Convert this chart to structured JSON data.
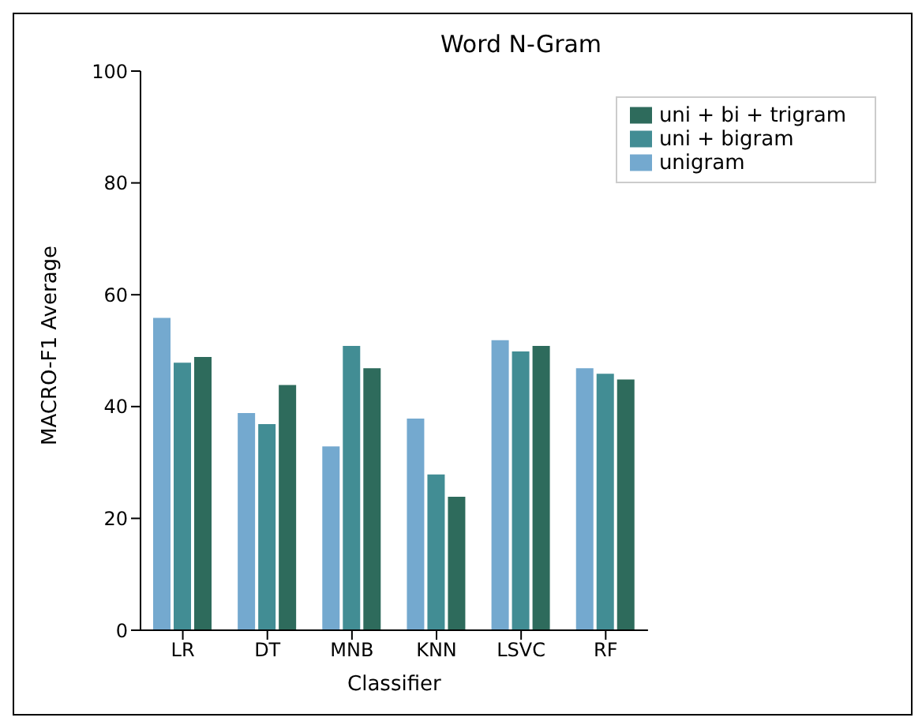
{
  "chart_data": {
    "type": "bar",
    "title": "Word N-Gram",
    "xlabel": "Classifier",
    "ylabel": "MACRO-F1 Average",
    "categories": [
      "LR",
      "DT",
      "MNB",
      "KNN",
      "LSVC",
      "RF"
    ],
    "series": [
      {
        "name": "unigram",
        "color": "#74a9cf",
        "values": [
          56,
          39,
          33,
          38,
          52,
          47
        ]
      },
      {
        "name": "uni + bigram",
        "color": "#428d94",
        "values": [
          48,
          37,
          51,
          28,
          50,
          46
        ]
      },
      {
        "name": "uni + bi + trigram",
        "color": "#2e6b5c",
        "values": [
          49,
          44,
          47,
          24,
          51,
          45
        ]
      }
    ],
    "ylim": [
      0,
      100
    ],
    "yticks": [
      0,
      20,
      40,
      60,
      80,
      100
    ],
    "grid": false,
    "legend": "top right"
  }
}
